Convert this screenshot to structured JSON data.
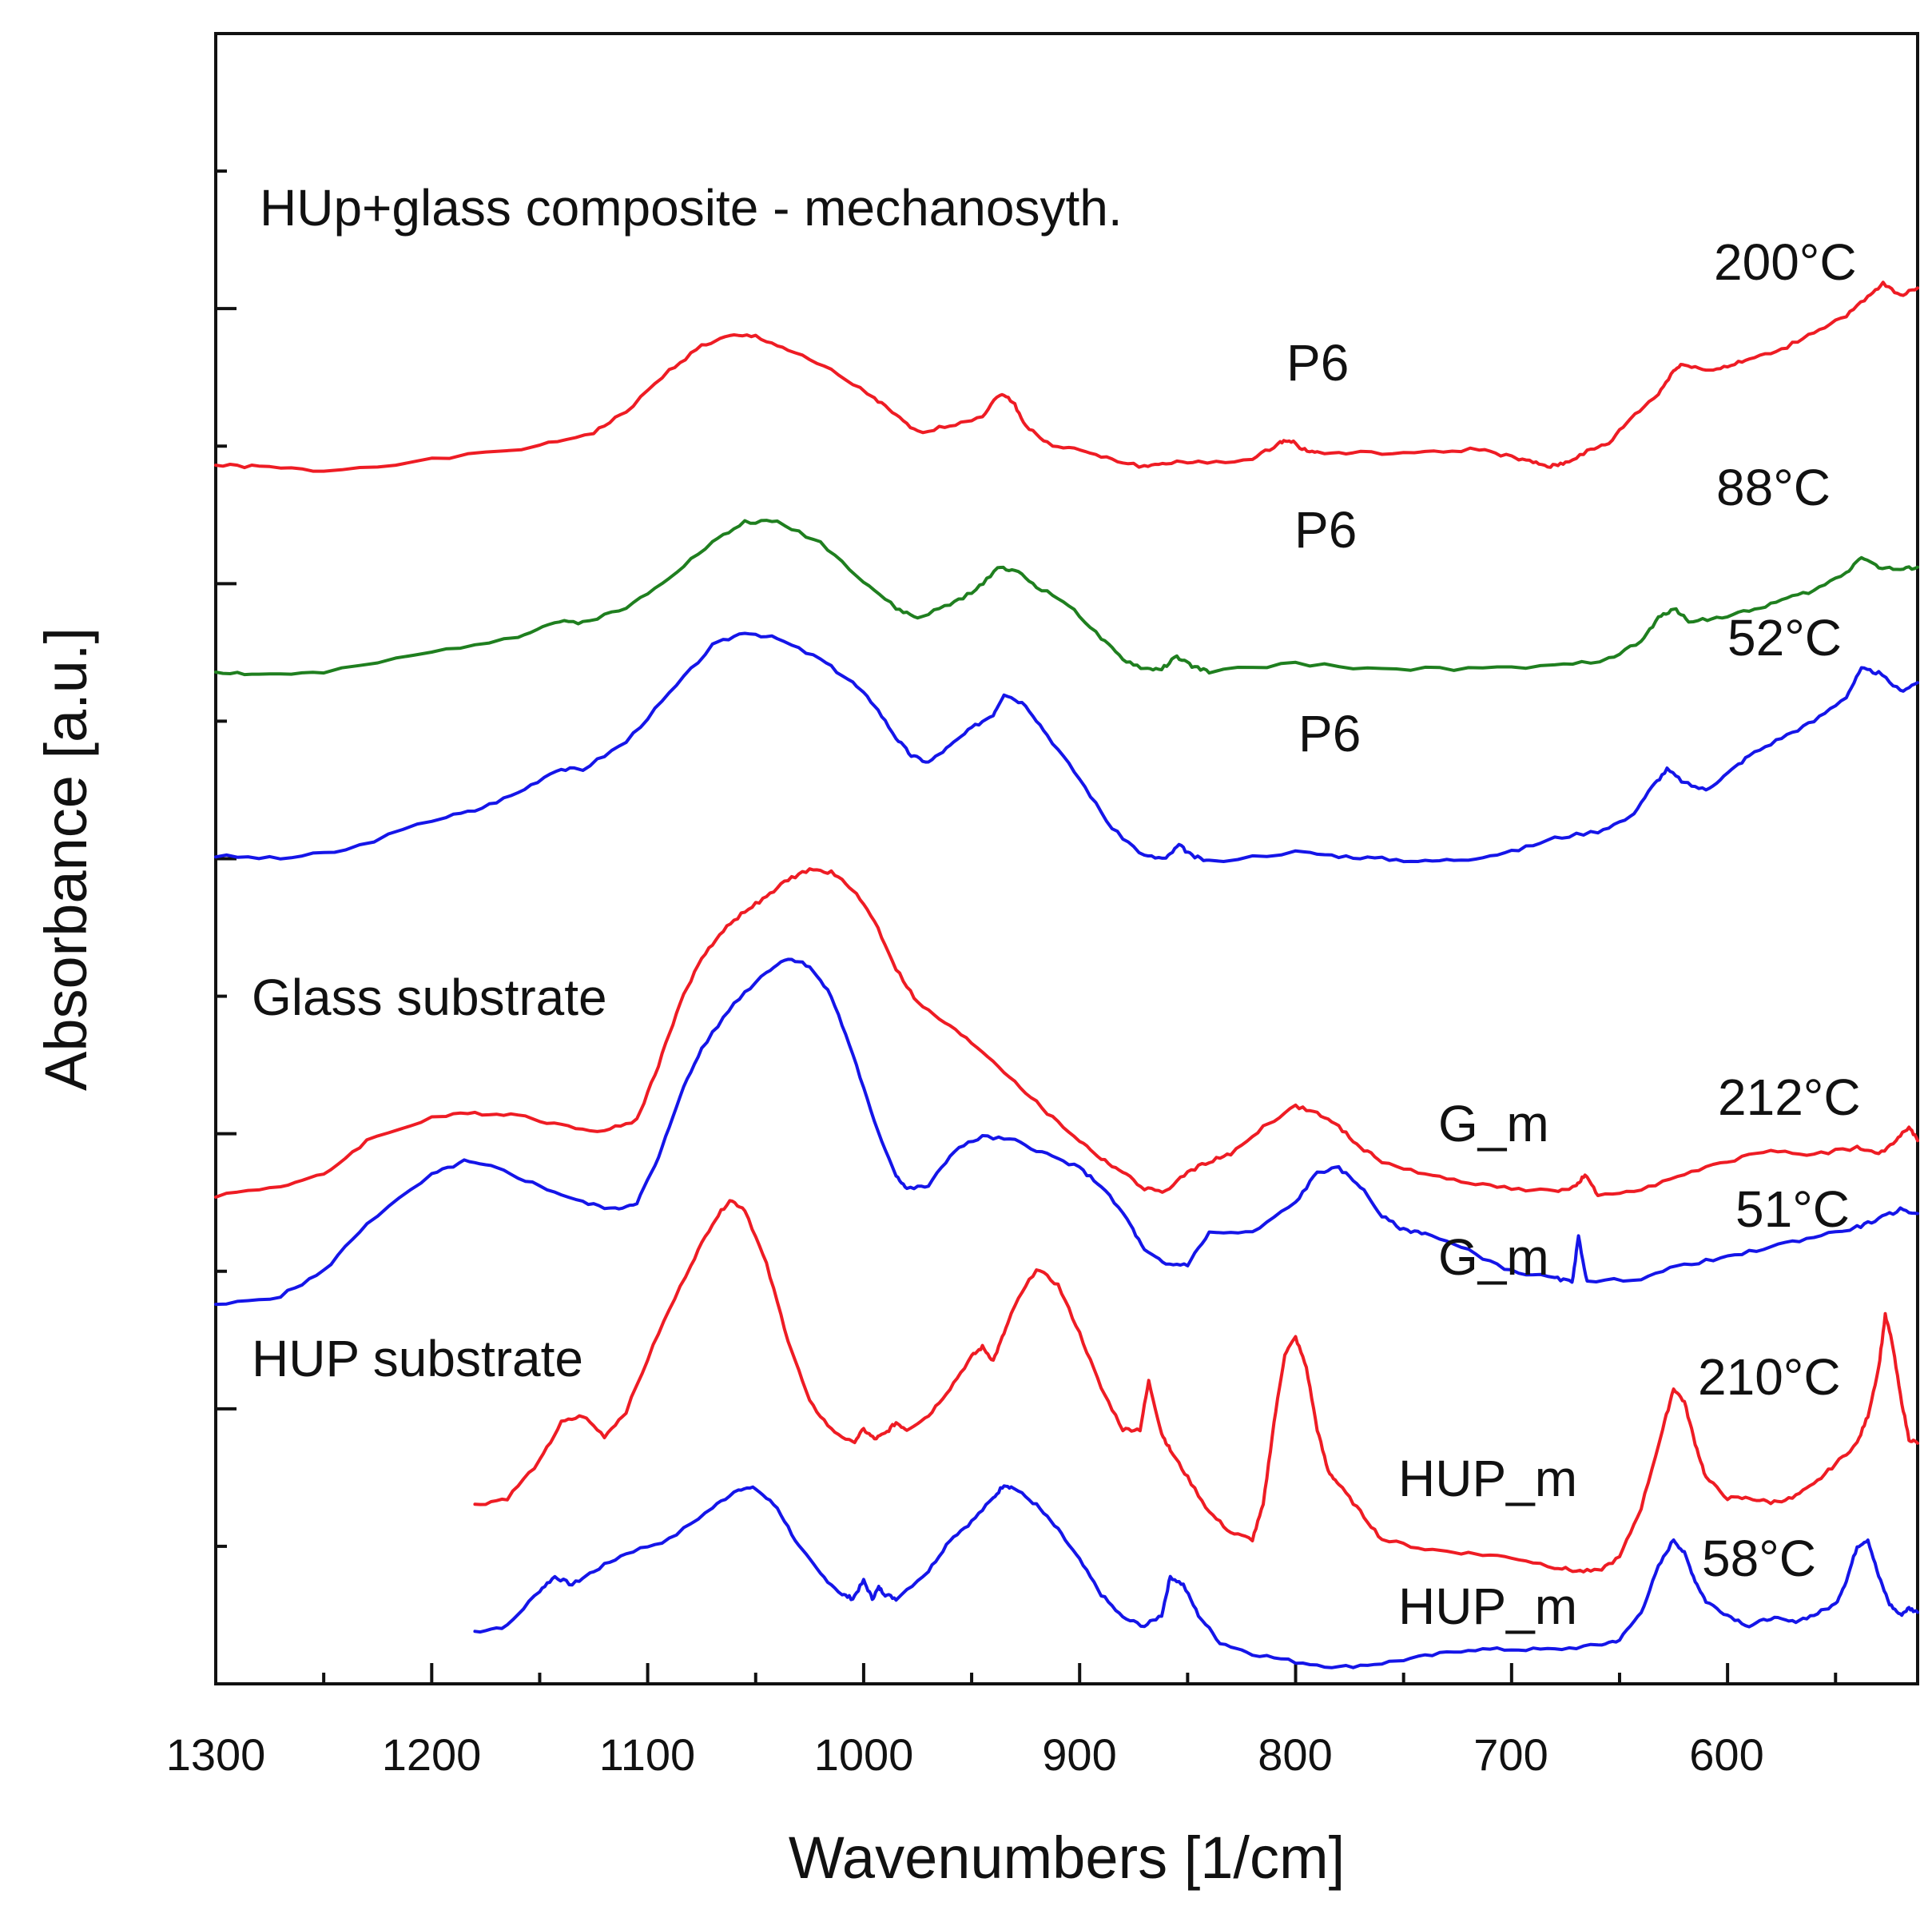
{
  "chart_data": {
    "type": "line",
    "title": "HUp+glass composite - mechanosyth.",
    "xlabel": "Wavenumbers [1/cm]",
    "ylabel": "Absorbance [a.u.]",
    "xlim": [
      1300,
      512
    ],
    "x_reversed": true,
    "ylim": [
      0,
      12
    ],
    "grid": false,
    "x_ticks": [
      1300,
      1200,
      1100,
      1000,
      900,
      800,
      700,
      600
    ],
    "x_tick_labels": [
      "1300",
      "1200",
      "1100",
      "1000",
      "900",
      "800",
      "700",
      "600"
    ],
    "y_ticks": [
      1,
      2,
      3,
      4,
      5,
      6,
      7,
      8,
      9,
      10,
      11
    ],
    "group_labels": [
      "Glass substrate",
      "HUP substrate"
    ],
    "colors": {
      "red": "#ee1c24",
      "green": "#1f7f1f",
      "blue": "#1515e8"
    },
    "series": [
      {
        "name": "P6 200°C",
        "label": "P6",
        "temp": "200°C",
        "color": "#ee1c24",
        "x": [
          1300,
          1280,
          1250,
          1200,
          1150,
          1125,
          1110,
          1090,
          1075,
          1062,
          1050,
          1035,
          1015,
          995,
          985,
          975,
          960,
          945,
          937,
          931,
          925,
          915,
          900,
          885,
          870,
          860,
          845,
          820,
          808,
          803,
          797,
          790,
          770,
          740,
          715,
          700,
          690,
          682,
          675,
          665,
          655,
          645,
          632,
          625,
          620,
          610,
          600,
          590,
          575,
          560,
          545,
          535,
          528,
          520,
          512
        ],
        "y": [
          8.86,
          8.85,
          8.82,
          8.9,
          9.0,
          9.1,
          9.25,
          9.55,
          9.73,
          9.8,
          9.8,
          9.7,
          9.55,
          9.35,
          9.22,
          9.1,
          9.15,
          9.22,
          9.38,
          9.33,
          9.15,
          9.02,
          8.97,
          8.9,
          8.85,
          8.88,
          8.88,
          8.9,
          9.02,
          9.05,
          8.98,
          8.95,
          8.95,
          8.95,
          8.98,
          8.92,
          8.88,
          8.85,
          8.88,
          8.96,
          9.02,
          9.2,
          9.38,
          9.55,
          9.6,
          9.55,
          9.58,
          9.63,
          9.7,
          9.83,
          9.95,
          10.08,
          10.18,
          10.1,
          10.15
        ]
      },
      {
        "name": "P6 88°C",
        "label": "P6",
        "temp": "88°C",
        "color": "#1f7f1f",
        "x": [
          1300,
          1280,
          1250,
          1200,
          1160,
          1143,
          1130,
          1110,
          1090,
          1070,
          1055,
          1040,
          1020,
          1000,
          985,
          975,
          960,
          948,
          938,
          930,
          920,
          905,
          890,
          880,
          870,
          862,
          855,
          848,
          840,
          800,
          760,
          720,
          680,
          655,
          640,
          632,
          625,
          618,
          605,
          590,
          575,
          560,
          545,
          538,
          530,
          520,
          512
        ],
        "y": [
          7.36,
          7.34,
          7.35,
          7.5,
          7.62,
          7.72,
          7.72,
          7.82,
          8.05,
          8.3,
          8.45,
          8.45,
          8.3,
          8.02,
          7.82,
          7.75,
          7.85,
          7.95,
          8.12,
          8.1,
          7.98,
          7.85,
          7.6,
          7.45,
          7.38,
          7.38,
          7.47,
          7.4,
          7.36,
          7.42,
          7.38,
          7.38,
          7.4,
          7.45,
          7.58,
          7.75,
          7.82,
          7.73,
          7.75,
          7.8,
          7.88,
          7.95,
          8.08,
          8.2,
          8.12,
          8.1,
          8.12
        ]
      },
      {
        "name": "P6 52°C",
        "label": "P6",
        "temp": "52°C",
        "color": "#1515e8",
        "x": [
          1300,
          1270,
          1240,
          1200,
          1180,
          1160,
          1142,
          1130,
          1110,
          1090,
          1070,
          1055,
          1040,
          1020,
          1005,
          995,
          985,
          978,
          970,
          960,
          950,
          940,
          935,
          925,
          915,
          900,
          885,
          870,
          860,
          854,
          848,
          840,
          800,
          780,
          760,
          740,
          720,
          700,
          680,
          660,
          645,
          635,
          628,
          620,
          610,
          600,
          590,
          575,
          560,
          545,
          538,
          530,
          520,
          512
        ],
        "y": [
          6.02,
          6.0,
          6.06,
          6.28,
          6.35,
          6.48,
          6.65,
          6.65,
          6.85,
          7.2,
          7.55,
          7.65,
          7.6,
          7.45,
          7.28,
          7.12,
          6.88,
          6.75,
          6.7,
          6.82,
          6.95,
          7.05,
          7.2,
          7.12,
          6.9,
          6.58,
          6.22,
          6.02,
          6.0,
          6.1,
          6.02,
          5.98,
          6.05,
          6.02,
          6.0,
          5.98,
          6.0,
          6.05,
          6.15,
          6.2,
          6.3,
          6.52,
          6.65,
          6.55,
          6.5,
          6.62,
          6.75,
          6.88,
          7.0,
          7.18,
          7.38,
          7.35,
          7.22,
          7.28
        ]
      },
      {
        "name": "G_m 212°C",
        "label": "G_m",
        "temp": "212°C",
        "color": "#ee1c24",
        "x": [
          1300,
          1270,
          1250,
          1230,
          1200,
          1180,
          1160,
          1140,
          1120,
          1105,
          1095,
          1085,
          1075,
          1065,
          1055,
          1045,
          1035,
          1025,
          1015,
          1005,
          995,
          985,
          975,
          960,
          945,
          930,
          915,
          900,
          890,
          880,
          870,
          860,
          850,
          840,
          830,
          815,
          800,
          790,
          780,
          770,
          760,
          740,
          720,
          700,
          680,
          670,
          666,
          660,
          640,
          620,
          600,
          580,
          560,
          540,
          530,
          522,
          516,
          512
        ],
        "y": [
          3.55,
          3.62,
          3.7,
          3.95,
          4.12,
          4.15,
          4.14,
          4.06,
          4.02,
          4.1,
          4.5,
          4.95,
          5.28,
          5.48,
          5.62,
          5.72,
          5.85,
          5.92,
          5.9,
          5.78,
          5.55,
          5.2,
          4.95,
          4.78,
          4.6,
          4.38,
          4.15,
          3.95,
          3.82,
          3.72,
          3.6,
          3.58,
          3.72,
          3.8,
          3.85,
          4.05,
          4.2,
          4.15,
          4.05,
          3.9,
          3.8,
          3.7,
          3.65,
          3.6,
          3.58,
          3.62,
          3.7,
          3.55,
          3.6,
          3.7,
          3.8,
          3.88,
          3.85,
          3.9,
          3.85,
          3.95,
          4.05,
          3.95
        ]
      },
      {
        "name": "G_m 51°C",
        "label": "G_m",
        "temp": "51°C",
        "color": "#1515e8",
        "x": [
          1300,
          1270,
          1250,
          1230,
          1200,
          1185,
          1170,
          1150,
          1130,
          1115,
          1105,
          1095,
          1085,
          1075,
          1060,
          1045,
          1035,
          1025,
          1015,
          1005,
          995,
          985,
          980,
          970,
          958,
          945,
          930,
          915,
          900,
          890,
          878,
          870,
          860,
          850,
          840,
          820,
          800,
          790,
          780,
          770,
          760,
          750,
          740,
          720,
          700,
          680,
          672,
          669,
          665,
          640,
          620,
          600,
          580,
          560,
          540,
          530,
          520,
          512
        ],
        "y": [
          2.75,
          2.82,
          3.0,
          3.35,
          3.7,
          3.8,
          3.75,
          3.62,
          3.5,
          3.45,
          3.5,
          3.82,
          4.28,
          4.62,
          4.95,
          5.18,
          5.28,
          5.22,
          5.0,
          4.58,
          4.08,
          3.7,
          3.6,
          3.62,
          3.88,
          3.98,
          3.95,
          3.85,
          3.75,
          3.62,
          3.38,
          3.15,
          3.05,
          3.05,
          3.28,
          3.28,
          3.5,
          3.72,
          3.75,
          3.62,
          3.4,
          3.3,
          3.28,
          3.15,
          3.0,
          2.95,
          2.92,
          3.25,
          2.92,
          2.95,
          3.05,
          3.1,
          3.18,
          3.25,
          3.32,
          3.38,
          3.45,
          3.42
        ]
      },
      {
        "name": "HUP_m 210°C",
        "label": "HUP_m",
        "temp": "210°C",
        "color": "#ee1c24",
        "x": [
          1180,
          1165,
          1150,
          1140,
          1130,
          1120,
          1110,
          1095,
          1080,
          1070,
          1062,
          1055,
          1045,
          1035,
          1025,
          1015,
          1005,
          1000,
          995,
          990,
          985,
          980,
          970,
          960,
          950,
          945,
          940,
          935,
          930,
          920,
          910,
          900,
          890,
          880,
          872,
          868,
          862,
          858,
          850,
          840,
          830,
          820,
          815,
          810,
          805,
          800,
          795,
          790,
          785,
          780,
          770,
          760,
          740,
          720,
          700,
          680,
          670,
          660,
          650,
          640,
          630,
          625,
          620,
          615,
          610,
          600,
          590,
          580,
          570,
          560,
          550,
          540,
          535,
          530,
          527,
          524,
          520,
          516,
          512
        ],
        "y": [
          1.3,
          1.35,
          1.62,
          1.9,
          1.95,
          1.8,
          1.98,
          2.55,
          3.05,
          3.35,
          3.52,
          3.45,
          3.05,
          2.5,
          2.05,
          1.85,
          1.75,
          1.85,
          1.78,
          1.82,
          1.9,
          1.85,
          1.95,
          2.15,
          2.38,
          2.45,
          2.35,
          2.55,
          2.75,
          3.02,
          2.9,
          2.55,
          2.15,
          1.85,
          1.85,
          2.2,
          1.82,
          1.7,
          1.5,
          1.25,
          1.1,
          1.05,
          1.3,
          1.9,
          2.4,
          2.52,
          2.3,
          1.85,
          1.55,
          1.45,
          1.25,
          1.05,
          0.98,
          0.95,
          0.92,
          0.85,
          0.82,
          0.82,
          0.92,
          1.28,
          1.85,
          2.15,
          2.05,
          1.75,
          1.5,
          1.35,
          1.35,
          1.32,
          1.35,
          1.45,
          1.6,
          1.75,
          1.95,
          2.3,
          2.68,
          2.5,
          2.1,
          1.78,
          1.75
        ]
      },
      {
        "name": "HUP_m 58°C",
        "label": "HUP_m",
        "temp": "58°C",
        "color": "#1515e8",
        "x": [
          1180,
          1165,
          1150,
          1143,
          1135,
          1125,
          1110,
          1090,
          1070,
          1058,
          1050,
          1040,
          1030,
          1020,
          1010,
          1005,
          1000,
          996,
          993,
          990,
          985,
          970,
          960,
          950,
          940,
          935,
          930,
          920,
          910,
          900,
          890,
          880,
          870,
          862,
          858,
          852,
          845,
          835,
          820,
          800,
          780,
          760,
          740,
          720,
          700,
          680,
          660,
          650,
          640,
          632,
          625,
          620,
          615,
          610,
          600,
          590,
          580,
          570,
          560,
          550,
          545,
          540,
          535,
          530,
          525,
          520,
          516,
          512
        ],
        "y": [
          0.38,
          0.42,
          0.68,
          0.78,
          0.72,
          0.82,
          0.95,
          1.05,
          1.28,
          1.42,
          1.42,
          1.28,
          1.0,
          0.8,
          0.65,
          0.62,
          0.75,
          0.62,
          0.7,
          0.65,
          0.62,
          0.82,
          1.05,
          1.18,
          1.35,
          1.45,
          1.42,
          1.3,
          1.12,
          0.9,
          0.65,
          0.48,
          0.42,
          0.5,
          0.78,
          0.72,
          0.5,
          0.3,
          0.22,
          0.16,
          0.12,
          0.15,
          0.2,
          0.25,
          0.25,
          0.25,
          0.28,
          0.32,
          0.52,
          0.85,
          1.05,
          0.95,
          0.75,
          0.6,
          0.5,
          0.42,
          0.48,
          0.45,
          0.5,
          0.58,
          0.75,
          1.0,
          1.05,
          0.78,
          0.58,
          0.5,
          0.55,
          0.52
        ]
      }
    ]
  }
}
